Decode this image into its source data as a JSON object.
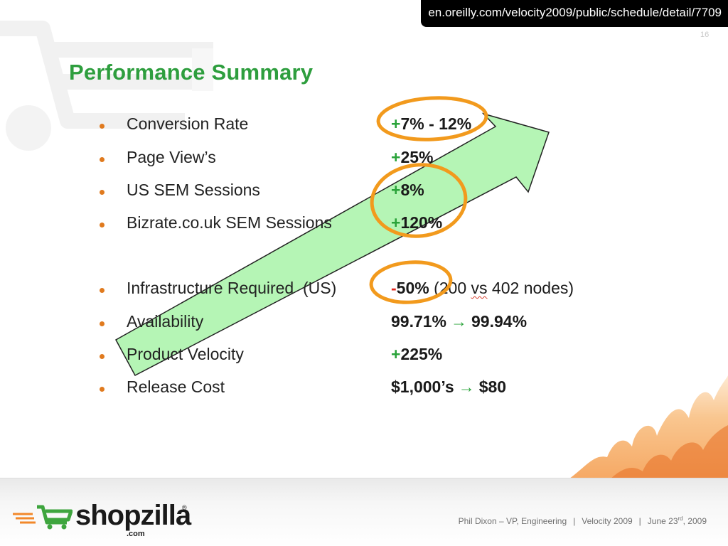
{
  "url_badge": "en.oreilly.com/velocity2009/public/schedule/detail/7709",
  "slide_number": "16",
  "title": "Performance Summary",
  "bullets": [
    {
      "label": "Conversion Rate",
      "sign": "+",
      "value": "7% - 12%"
    },
    {
      "label": "Page View’s",
      "sign": "+",
      "value": "25%"
    },
    {
      "label": "US SEM Sessions",
      "sign": "+",
      "value": "8%"
    },
    {
      "label": "Bizrate.co.uk SEM Sessions",
      "sign": "+",
      "value": "120%"
    },
    {
      "label": "Infrastructure Required  (US)",
      "sign": "-",
      "value": "50%",
      "note_open": "(200 ",
      "note_vs": "vs",
      "note_close": " 402 nodes)"
    },
    {
      "label": "Availability",
      "from": "99.71%",
      "to": "99.94%"
    },
    {
      "label": "Product Velocity",
      "sign": "+",
      "value": "225%"
    },
    {
      "label": "Release Cost",
      "from": "$1,000’s",
      "to": "$80"
    }
  ],
  "arrow_glyph": "→",
  "footer": {
    "presenter": "Phil Dixon – VP, Engineering",
    "separator": "|",
    "event": "Velocity 2009",
    "date_prefix": "June 23",
    "date_suffix": "rd",
    "date_year": ", 2009"
  },
  "logo": {
    "word": "shopzilla",
    "registered": "®",
    "dotcom": ".com"
  },
  "colors": {
    "title_green": "#2e9e3e",
    "bullet_orange": "#e07a1e",
    "circle_orange": "#f29a1d",
    "arrow_fill": "#b5f5b5",
    "plus_green": "#2aa33a",
    "minus_red": "#e0261e"
  }
}
